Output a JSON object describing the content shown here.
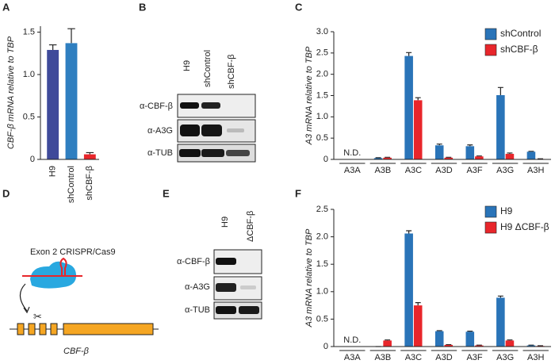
{
  "panel_labels": [
    "A",
    "B",
    "C",
    "D",
    "E",
    "F"
  ],
  "chart_data": [
    {
      "type": "bar",
      "ylabel": "CBF-β mRNA relative to TBP",
      "categories": [
        "H9",
        "shControl",
        "shCBF-β"
      ],
      "series": [
        {
          "colors": [
            "#3f4a9a",
            "#2f7fc0",
            "#e8262b"
          ],
          "values": [
            1.29,
            1.37,
            0.06
          ],
          "errors": [
            0.06,
            0.17,
            0.02
          ]
        }
      ],
      "ylim": [
        0,
        1.57
      ],
      "yticks": [
        0,
        0.5,
        {
          "value": 1,
          "label": "1.0"
        },
        1.5
      ]
    },
    {
      "type": "bar",
      "ylabel": "A3 mRNA relative to TBP",
      "categories": [
        "A3A",
        "A3B",
        "A3C",
        "A3D",
        "A3F",
        "A3G",
        "A3H"
      ],
      "series": [
        {
          "name": "shControl",
          "color": "#2a74b8",
          "values": [
            null,
            0.03,
            2.43,
            0.33,
            0.31,
            1.51,
            0.18
          ],
          "errors": [
            null,
            0.01,
            0.08,
            0.03,
            0.03,
            0.18,
            0.01
          ]
        },
        {
          "name": "shCBF-β",
          "color": "#e8262b",
          "values": [
            null,
            0.04,
            1.39,
            0.04,
            0.07,
            0.13,
            0.01
          ],
          "errors": [
            null,
            0.01,
            0.06,
            0.01,
            0.01,
            0.02,
            0.005
          ]
        }
      ],
      "annotation": "N.D.",
      "legend": "upper right",
      "ylim": [
        0,
        3
      ],
      "yticks": [
        0,
        0.5,
        {
          "value": 1,
          "label": "1.0"
        },
        1.5,
        {
          "value": 2,
          "label": "2.0"
        },
        2.5,
        {
          "value": 3,
          "label": "3.0"
        }
      ]
    },
    {
      "type": "bar",
      "ylabel": "A3 mRNA relative to TBP",
      "categories": [
        "A3A",
        "A3B",
        "A3C",
        "A3D",
        "A3F",
        "A3G",
        "A3H"
      ],
      "series": [
        {
          "name": "H9",
          "color": "#2a74b8",
          "values": [
            null,
            0.0,
            2.06,
            0.28,
            0.27,
            0.89,
            0.02
          ],
          "errors": [
            null,
            0.0,
            0.05,
            0.01,
            0.01,
            0.03,
            0.005
          ]
        },
        {
          "name": "H9 ΔCBF-β",
          "color": "#e8262b",
          "values": [
            null,
            0.11,
            0.75,
            0.03,
            0.02,
            0.11,
            0.01
          ],
          "errors": [
            null,
            0.01,
            0.05,
            0.005,
            0.005,
            0.01,
            0.005
          ]
        }
      ],
      "annotation": "N.D.",
      "legend": "upper right",
      "ylim": [
        0,
        2.5
      ],
      "yticks": [
        0,
        0.5,
        {
          "value": 1,
          "label": "1.0"
        },
        1.5,
        {
          "value": 2,
          "label": "2.0"
        },
        2.5
      ]
    }
  ],
  "blots": [
    {
      "lanes": [
        "H9",
        "shControl",
        "shCBF-β"
      ],
      "rows": [
        "α-CBF-β",
        "α-A3G",
        "α-TUB"
      ]
    },
    {
      "lanes": [
        "H9",
        "ΔCBF-β"
      ],
      "rows": [
        "α-CBF-β",
        "α-A3G",
        "α-TUB"
      ]
    }
  ],
  "diagram": {
    "label": "Exon 2 CRISPR/Cas9",
    "gene": "CBF-β"
  }
}
